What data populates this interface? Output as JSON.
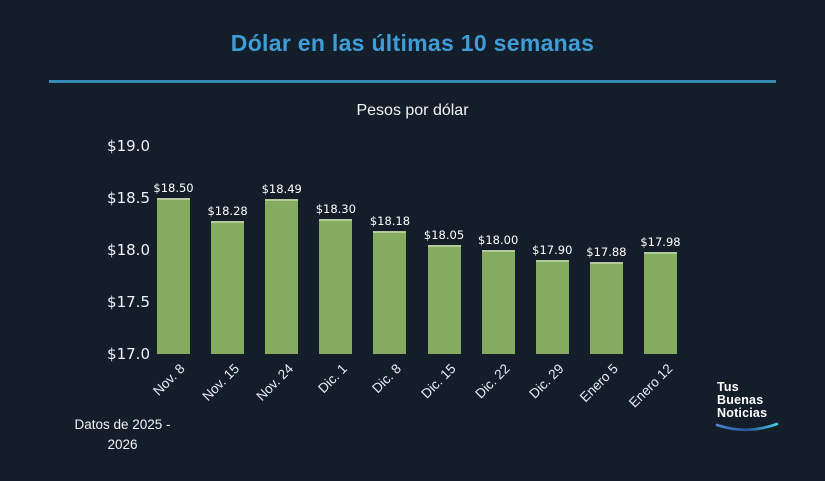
{
  "header": {
    "title": "Dólar en las últimas 10 semanas"
  },
  "chart_data": {
    "type": "bar",
    "title": "Pesos por dólar",
    "categories": [
      "Nov. 8",
      "Nov. 15",
      "Nov. 24",
      "Dic. 1",
      "Dic. 8",
      "Dic. 15",
      "Dic. 22",
      "Dic. 29",
      "Enero 5",
      "Enero 12"
    ],
    "values": [
      18.5,
      18.28,
      18.49,
      18.3,
      18.18,
      18.05,
      18.0,
      17.9,
      17.88,
      17.98
    ],
    "bar_labels": [
      "$18.50",
      "$18.28",
      "$18.49",
      "$18.30",
      "$18.18",
      "$18.05",
      "$18.00",
      "$17.90",
      "$17.88",
      "$17.98"
    ],
    "xlabel": "",
    "ylabel": "",
    "ylim": [
      17.0,
      19.0
    ],
    "yticks": [
      "$19.0",
      "$18.5",
      "$18.0",
      "$17.5",
      "$17.0"
    ],
    "ytick_values": [
      19.0,
      18.5,
      18.0,
      17.5,
      17.0
    ],
    "grid": false,
    "legend": false,
    "xtick_rotation_deg": 45
  },
  "footer": {
    "source_note_line1": "Datos de 2025 -",
    "source_note_line2": "2026"
  },
  "logo": {
    "lines": [
      "Tus",
      "Buenas",
      "Noticias"
    ]
  },
  "colors": {
    "background": "#141e2b",
    "title": "#3f9dd6",
    "divider": "#3a8cb8",
    "bar": "#85ab5f",
    "text": "#f2f5f7",
    "swoosh_left": "#4a86d2",
    "swoosh_mid": "#27549b",
    "swoosh_right": "#45cfe2"
  }
}
